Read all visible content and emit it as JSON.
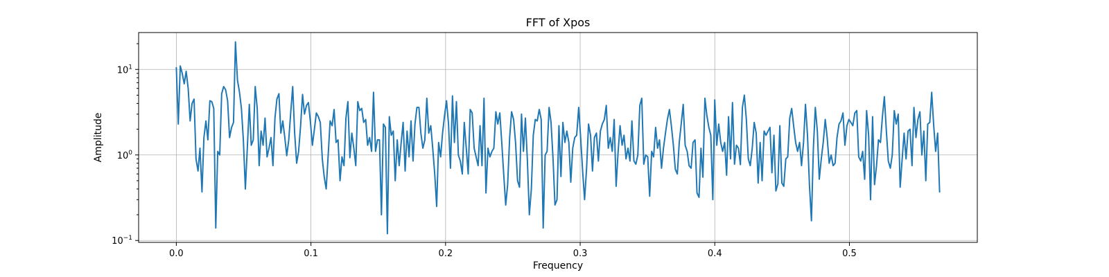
{
  "chart_data": {
    "type": "line",
    "title": "FFT of Xpos",
    "xlabel": "Frequency",
    "ylabel": "Amplitude",
    "xlim": [
      -0.028,
      0.595
    ],
    "ylim": [
      0.095,
      27
    ],
    "yscale": "log",
    "grid": true,
    "line_color": "#1f77b4",
    "xticks": [
      {
        "value": 0.0,
        "label": "0.0"
      },
      {
        "value": 0.1,
        "label": "0.1"
      },
      {
        "value": 0.2,
        "label": "0.2"
      },
      {
        "value": 0.3,
        "label": "0.3"
      },
      {
        "value": 0.4,
        "label": "0.4"
      },
      {
        "value": 0.5,
        "label": "0.5"
      }
    ],
    "yticks": [
      {
        "value": 0.1,
        "base": "10",
        "exp": "−1"
      },
      {
        "value": 1,
        "base": "10",
        "exp": "0"
      },
      {
        "value": 10,
        "base": "10",
        "exp": "1"
      }
    ],
    "series": [
      {
        "x_start": 0.0,
        "x_end": 0.567,
        "values": [
          10.5,
          2.3,
          11,
          9,
          6.8,
          9.5,
          6,
          2.5,
          4,
          4.5,
          0.9,
          0.65,
          1.2,
          0.37,
          1.6,
          2.5,
          1.5,
          4.3,
          4.2,
          3.5,
          0.14,
          1.1,
          1.0,
          5.2,
          6.3,
          5.8,
          4.3,
          1.6,
          2.1,
          2.4,
          21,
          7.5,
          5.5,
          3.5,
          1.5,
          0.4,
          1.2,
          3.9,
          1.3,
          1.5,
          6.3,
          3.5,
          0.75,
          1.9,
          1.3,
          2.7,
          0.95,
          1.2,
          1.6,
          0.75,
          2.7,
          4.5,
          5.2,
          1.8,
          2.5,
          1.6,
          0.98,
          1.5,
          3.1,
          6.3,
          1.8,
          0.8,
          1.1,
          2.2,
          5.1,
          3.0,
          3.8,
          4.1,
          2.4,
          1.3,
          2.0,
          3.1,
          2.8,
          2.4,
          0.9,
          0.55,
          0.4,
          1.0,
          2.5,
          2.2,
          3.4,
          1.4,
          1.5,
          0.5,
          0.95,
          0.75,
          2.7,
          4.2,
          0.93,
          1.8,
          1.2,
          0.75,
          4.2,
          3.3,
          3.5,
          2.4,
          2.6,
          1.3,
          1.6,
          1.1,
          5.4,
          1.1,
          1.5,
          1.5,
          0.2,
          2.3,
          2.1,
          0.12,
          2.8,
          1.7,
          1.9,
          0.5,
          1.5,
          0.75,
          1.4,
          2.4,
          0.65,
          1.9,
          0.95,
          2.5,
          0.85,
          2.3,
          3.6,
          3.6,
          1.8,
          1.2,
          1.5,
          4.6,
          1.8,
          2.2,
          1.2,
          0.6,
          0.25,
          1.4,
          0.95,
          1.8,
          2.9,
          4.3,
          2.3,
          0.7,
          4.9,
          1.4,
          4.2,
          1.0,
          0.85,
          0.6,
          2.4,
          1.2,
          0.6,
          3.4,
          3.1,
          1.2,
          0.95,
          0.75,
          2.2,
          0.75,
          4.6,
          0.36,
          1.2,
          0.95,
          1.1,
          1.2,
          3.2,
          2.3,
          3.1,
          1.4,
          0.6,
          0.26,
          0.45,
          1.6,
          3.2,
          2.6,
          1.4,
          0.5,
          0.42,
          3.0,
          1.1,
          2.7,
          0.85,
          0.2,
          0.4,
          1.7,
          2.6,
          2.5,
          3.4,
          2.6,
          0.14,
          1.0,
          1.1,
          3.6,
          2.4,
          0.9,
          0.26,
          0.3,
          2.2,
          0.56,
          2.4,
          1.4,
          1.9,
          1.4,
          0.48,
          1.2,
          1.6,
          1.7,
          3.6,
          1.6,
          0.65,
          0.3,
          0.7,
          2.3,
          1.7,
          0.65,
          1.6,
          1.8,
          0.85,
          1.9,
          2.3,
          2.6,
          3.8,
          1.2,
          1.6,
          1.1,
          2.6,
          0.43,
          1.1,
          2.2,
          1.3,
          1.7,
          0.9,
          1.2,
          0.85,
          2.5,
          0.85,
          0.78,
          1.0,
          3.8,
          4.6,
          0.78,
          1.0,
          0.95,
          0.33,
          1.1,
          0.95,
          2.1,
          1.2,
          1.5,
          0.7,
          1.2,
          1.8,
          2.6,
          3.4,
          2.2,
          1.3,
          0.68,
          0.6,
          1.4,
          2.3,
          3.9,
          1.3,
          1.1,
          0.75,
          0.7,
          1.4,
          1.5,
          0.36,
          0.32,
          1.2,
          0.55,
          4.6,
          2.9,
          2.1,
          1.7,
          0.3,
          4.4,
          1.3,
          2.3,
          1.4,
          1.1,
          1.4,
          0.58,
          2.8,
          0.9,
          4.1,
          0.78,
          1.3,
          1.2,
          0.77,
          3.6,
          5.0,
          2.6,
          0.9,
          0.75,
          1.2,
          2.4,
          1.8,
          0.47,
          1.4,
          0.5,
          1.9,
          1.7,
          1.9,
          2.1,
          0.62,
          1.7,
          0.38,
          0.46,
          2.2,
          0.47,
          0.43,
          0.9,
          0.95,
          2.7,
          3.5,
          2.2,
          1.4,
          1.1,
          1.4,
          0.75,
          1.4,
          3.9,
          1.7,
          0.45,
          0.17,
          1.2,
          3.6,
          1.9,
          0.52,
          0.9,
          1.4,
          2.6,
          1.6,
          0.8,
          1.0,
          0.75,
          0.8,
          1.6,
          2.3,
          2.5,
          3.1,
          1.3,
          2.2,
          2.6,
          2.4,
          2.2,
          3.1,
          3.3,
          0.95,
          0.85,
          1.1,
          0.52,
          3.3,
          1.7,
          0.3,
          2.8,
          0.45,
          0.75,
          1.5,
          1.4,
          2.8,
          4.8,
          1.9,
          0.85,
          0.7,
          1.0,
          3.3,
          2.3,
          3.0,
          0.42,
          0.9,
          1.8,
          0.9,
          1.9,
          2.0,
          0.75,
          3.6,
          1.6,
          2.6,
          3.2,
          1.0,
          1.9,
          0.5,
          2.3,
          2.4,
          5.4,
          2.2,
          1.1,
          1.8,
          0.37
        ]
      }
    ]
  }
}
